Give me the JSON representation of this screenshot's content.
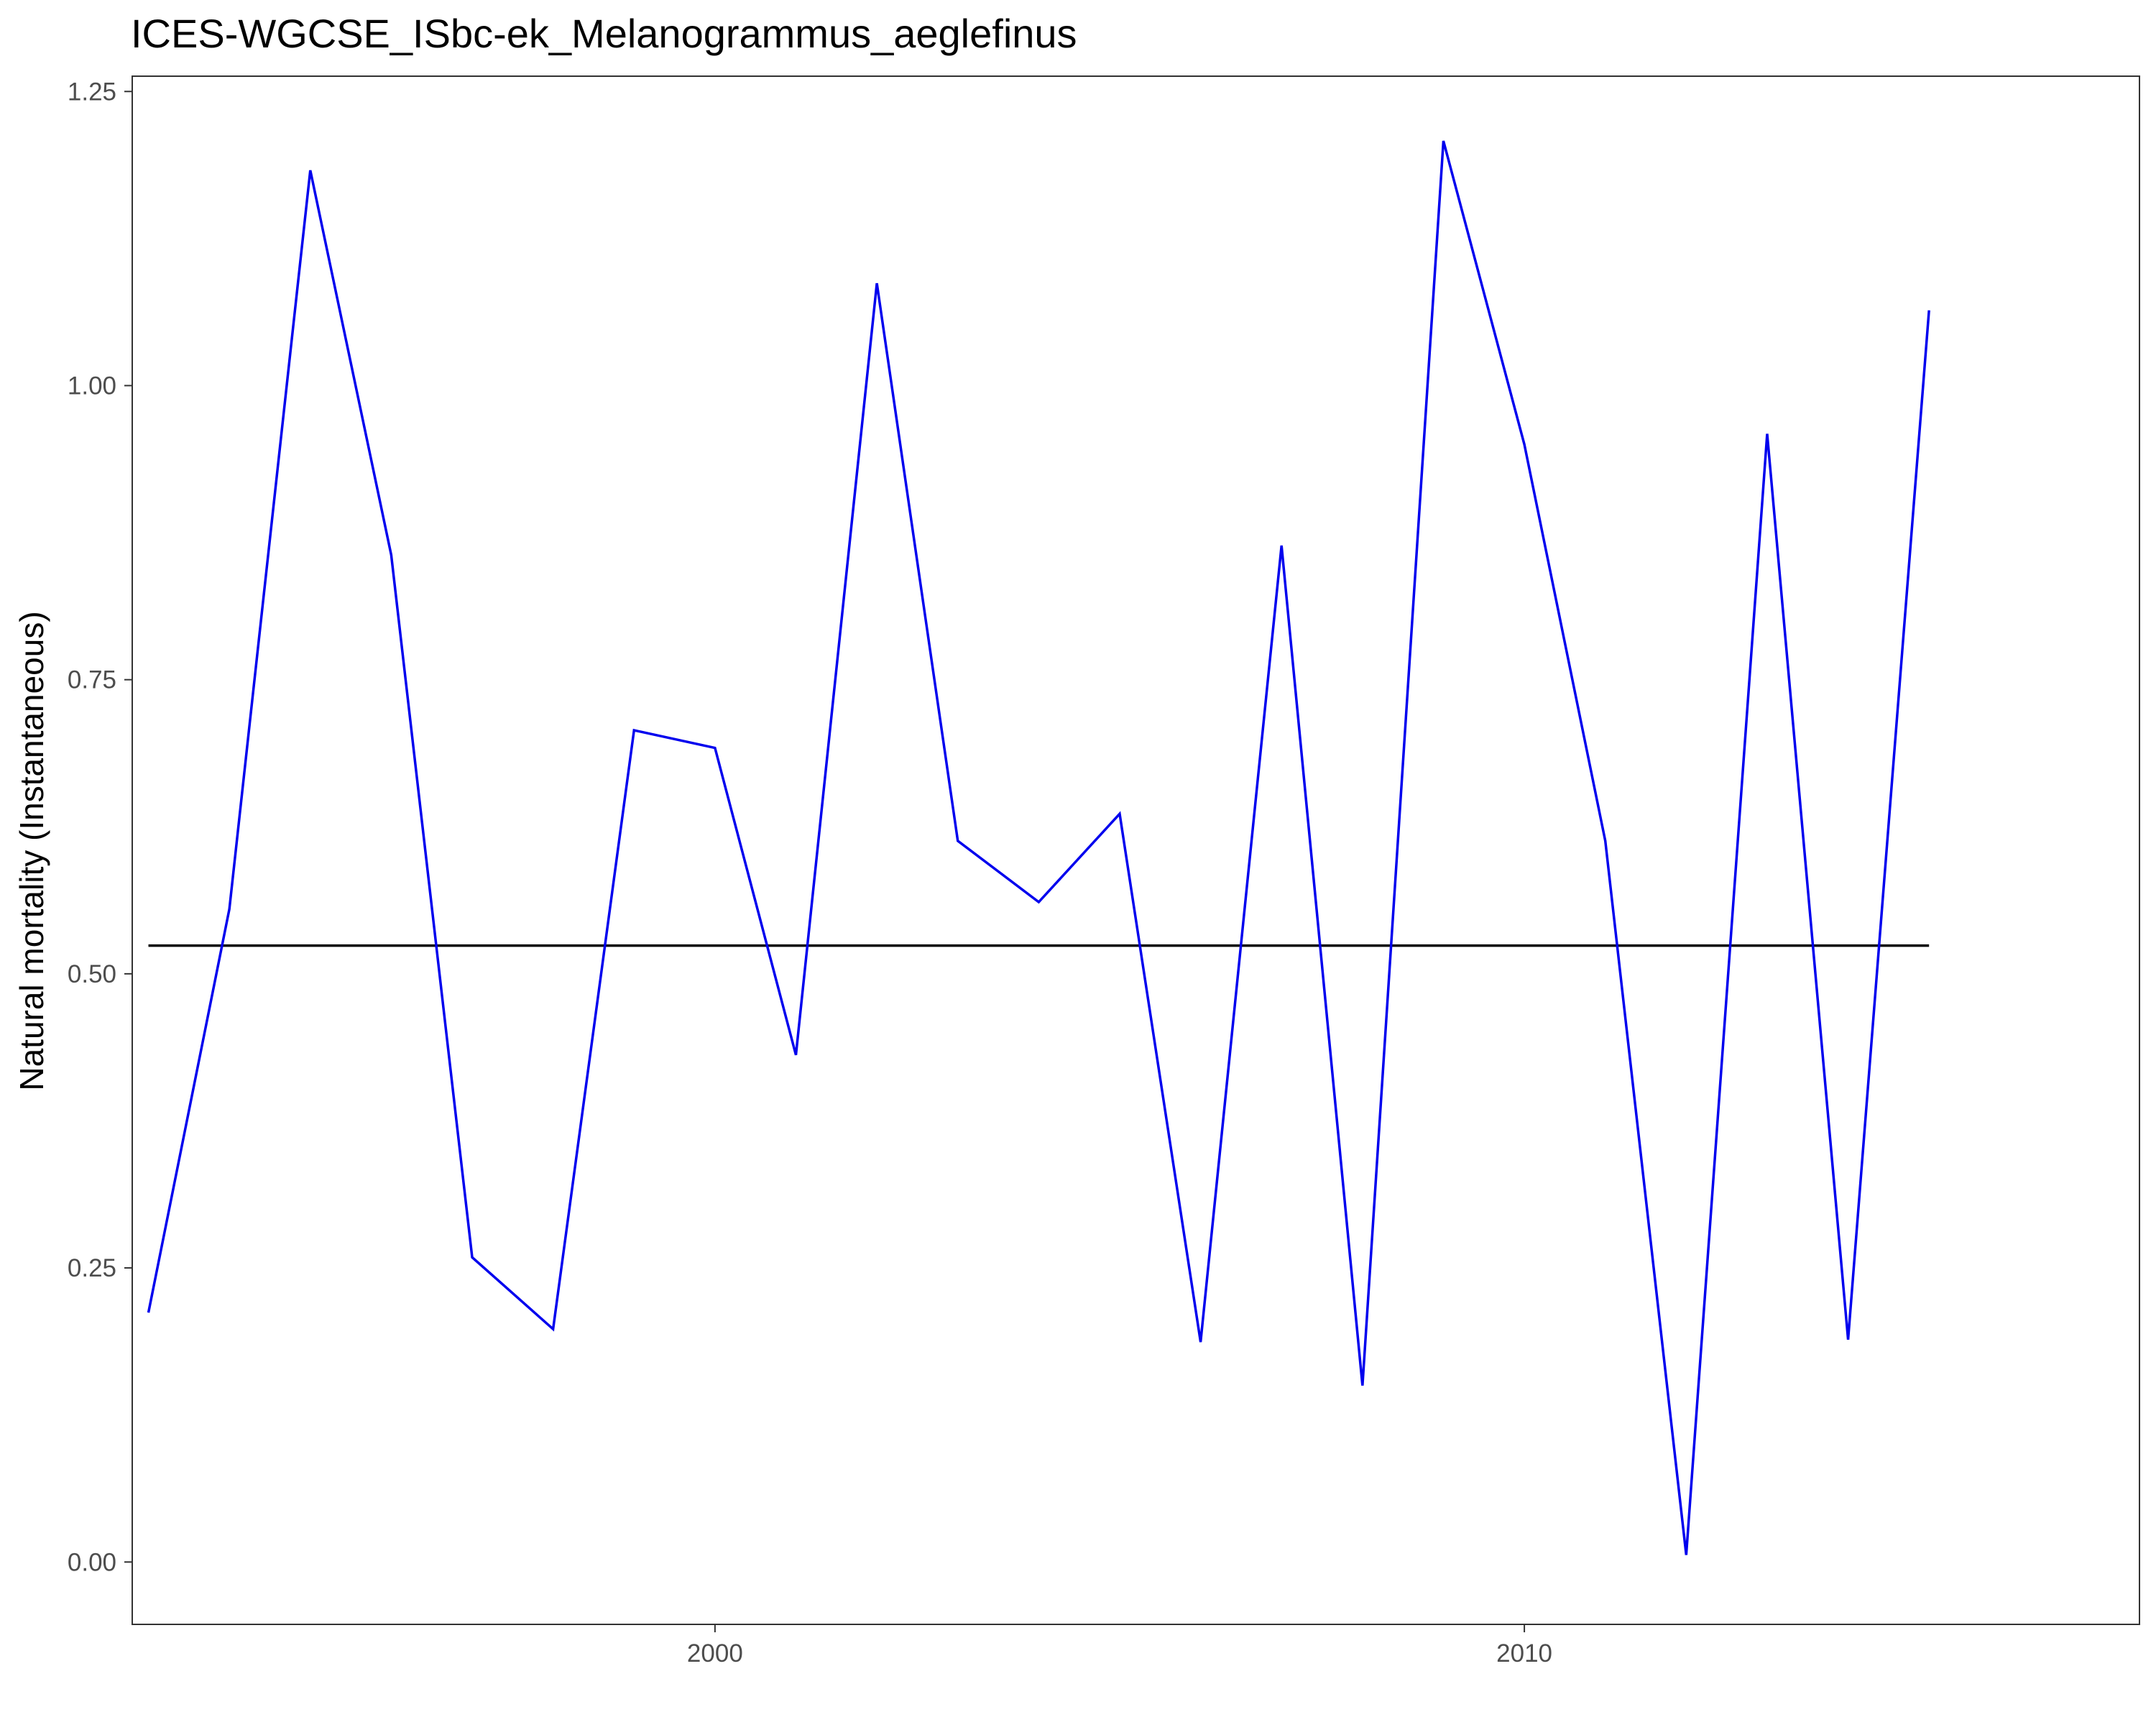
{
  "chart_data": {
    "type": "line",
    "title": "ICES-WGCSE_ISbc-ek_Melanogrammus_aeglefinus",
    "xlabel": "",
    "ylabel": "Natural mortality (Instantaneous)",
    "xlim": [
      1992.8,
      2017.6
    ],
    "ylim": [
      -0.053,
      1.263
    ],
    "x_ticks": [
      2000,
      2010
    ],
    "x_tick_labels": [
      "2000",
      "2010"
    ],
    "y_ticks": [
      0,
      0.25,
      0.5,
      0.75,
      1.0,
      1.25
    ],
    "y_tick_labels": [
      "0.00",
      "0.25",
      "0.50",
      "0.75",
      "1.00",
      "1.25"
    ],
    "grid": false,
    "series": [
      {
        "color": "#0000ee",
        "x": [
          1993,
          1994,
          1995,
          1996,
          1997,
          1998,
          1999,
          2000,
          2001,
          2002,
          2003,
          2004,
          2005,
          2006,
          2007,
          2008,
          2009,
          2010,
          2011,
          2012,
          2013,
          2014,
          2015,
          2016
        ],
        "y": [
          0.212,
          0.555,
          1.183,
          0.856,
          0.259,
          0.198,
          0.707,
          0.692,
          0.431,
          1.087,
          0.613,
          0.561,
          0.636,
          0.187,
          0.864,
          0.15,
          1.208,
          0.95,
          0.613,
          0.006,
          0.959,
          0.189,
          1.064,
          null
        ],
        "note": ""
      },
      {
        "color": "#000000",
        "x": [
          1993,
          2015
        ],
        "y": [
          0.524,
          0.524
        ]
      }
    ]
  }
}
